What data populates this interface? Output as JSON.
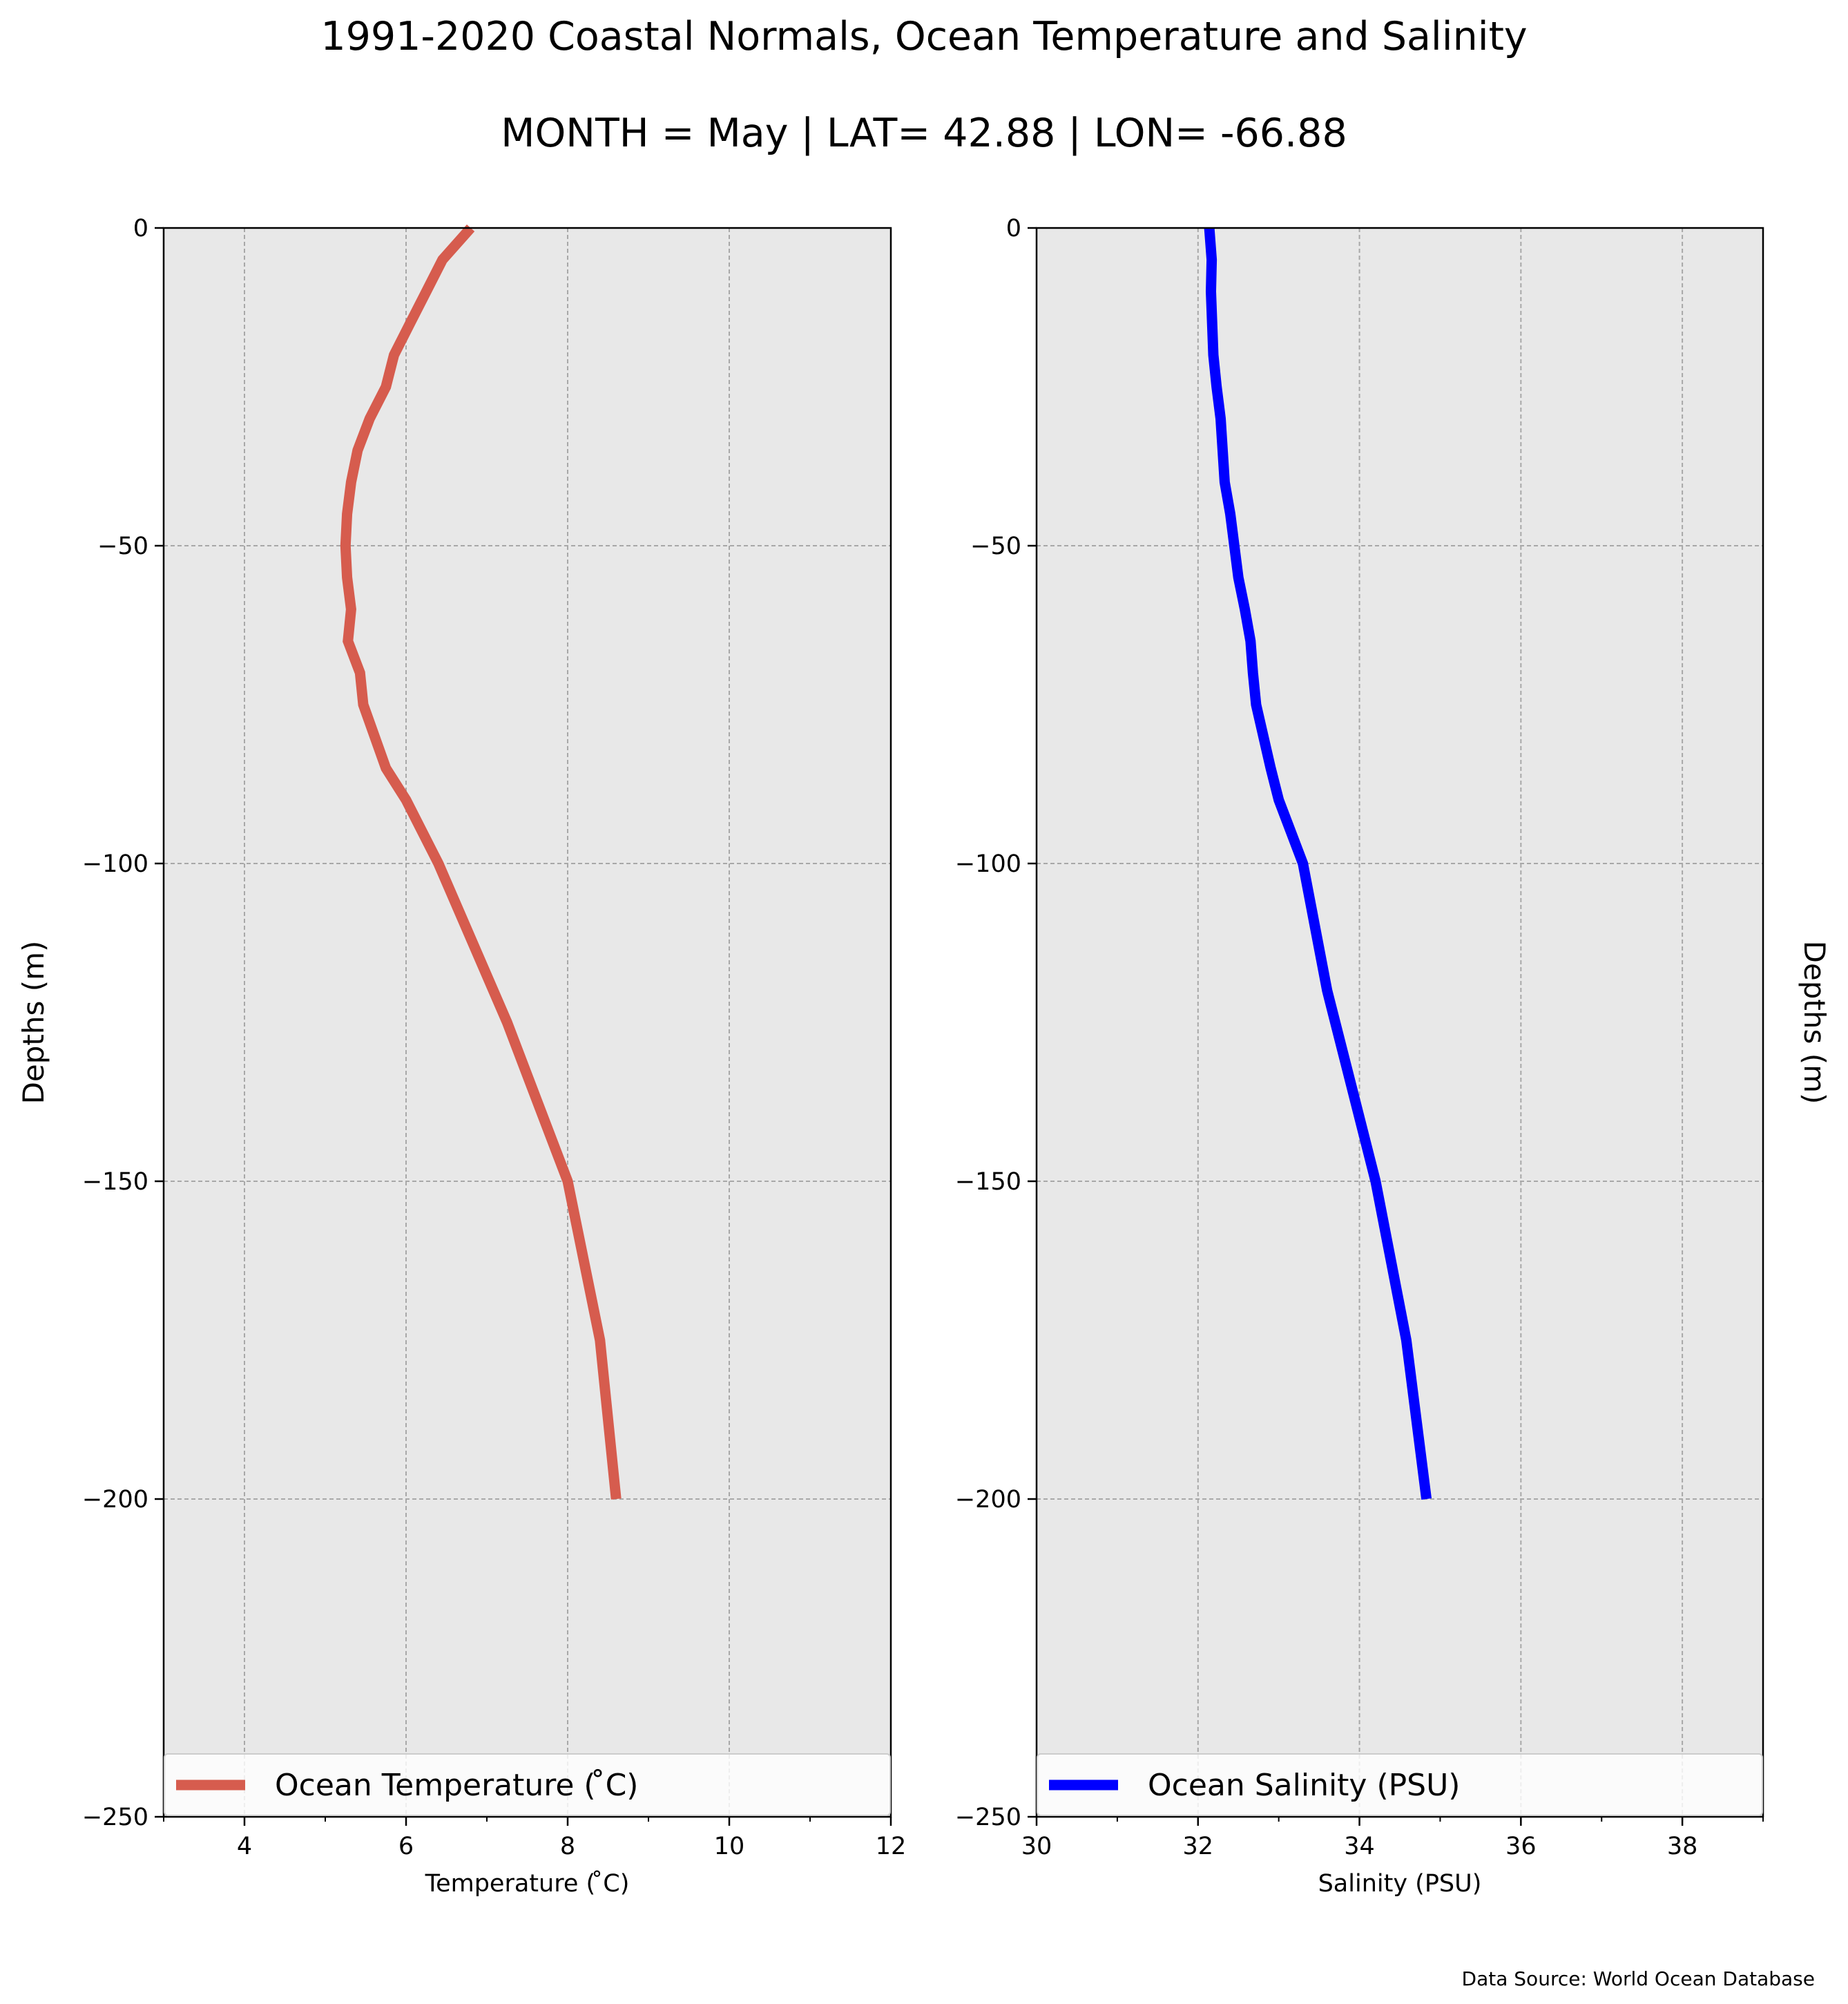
{
  "figure": {
    "title": "1991-2020 Coastal Normals, Ocean Temperature and Salinity",
    "subtitle": "MONTH = May | LAT= 42.88 | LON= -66.88",
    "source": "Data Source: World Ocean Database",
    "colors": {
      "plot_background": "#e8e8e8",
      "grid": "#a8a8a8",
      "temperature_line": "#d65c4e",
      "salinity_line": "#0000ff"
    }
  },
  "chart_data": [
    {
      "type": "line",
      "orientation": "profile (depth on y-axis)",
      "xlabel": "Temperature ($^\\circ$C)",
      "xlabel_display": "Temperature ( ̊C)",
      "ylabel": "Depths (m)",
      "ylabel_side": "left",
      "xlim": [
        3,
        12
      ],
      "ylim": [
        -250,
        0
      ],
      "xticks": [
        4,
        6,
        8,
        10,
        12
      ],
      "xtick_labels": [
        "4",
        "6",
        "8",
        "10",
        "12"
      ],
      "yticks": [
        0,
        -50,
        -100,
        -150,
        -200,
        -250
      ],
      "ytick_labels": [
        "0",
        "−50",
        "−100",
        "−150",
        "−200",
        "−250"
      ],
      "grid": true,
      "grid_style": "dashed",
      "legend_position": "bottom (full width)",
      "series": [
        {
          "name": "Ocean Temperature ( ̊C)",
          "color": "#d65c4e",
          "x": [
            6.8,
            6.45,
            6.25,
            6.05,
            5.85,
            5.75,
            5.55,
            5.4,
            5.32,
            5.27,
            5.25,
            5.27,
            5.32,
            5.28,
            5.43,
            5.47,
            5.75,
            6.0,
            6.2,
            6.4,
            7.25,
            8.0,
            8.4,
            8.6
          ],
          "y": [
            0,
            -5,
            -10,
            -15,
            -20,
            -25,
            -30,
            -35,
            -40,
            -45,
            -50,
            -55,
            -60,
            -65,
            -70,
            -75,
            -85,
            -90,
            -95,
            -100,
            -125,
            -150,
            -175,
            -200
          ]
        }
      ]
    },
    {
      "type": "line",
      "orientation": "profile (depth on y-axis)",
      "xlabel": "Salinity (PSU)",
      "ylabel": "Depths (m)",
      "ylabel_side": "right",
      "xlim": [
        30,
        39
      ],
      "ylim": [
        -250,
        0
      ],
      "xticks": [
        30,
        32,
        34,
        36,
        38
      ],
      "xtick_labels": [
        "30",
        "32",
        "34",
        "36",
        "38"
      ],
      "yticks": [
        0,
        -50,
        -100,
        -150,
        -200,
        -250
      ],
      "ytick_labels": [
        "0",
        "−50",
        "−100",
        "−150",
        "−200",
        "−250"
      ],
      "grid": true,
      "grid_style": "dashed",
      "legend_position": "bottom (full width)",
      "series": [
        {
          "name": "Ocean Salinity (PSU)",
          "color": "#0000ff",
          "x": [
            32.14,
            32.17,
            32.16,
            32.19,
            32.23,
            32.28,
            32.33,
            32.4,
            32.5,
            32.58,
            32.65,
            32.68,
            32.72,
            32.9,
            33.0,
            33.3,
            33.6,
            33.9,
            34.2,
            34.58,
            34.83
          ],
          "y": [
            0,
            -5,
            -10,
            -20,
            -25,
            -30,
            -40,
            -45,
            -55,
            -60,
            -65,
            -70,
            -75,
            -85,
            -90,
            -100,
            -120,
            -135,
            -150,
            -175,
            -200
          ]
        }
      ]
    }
  ]
}
